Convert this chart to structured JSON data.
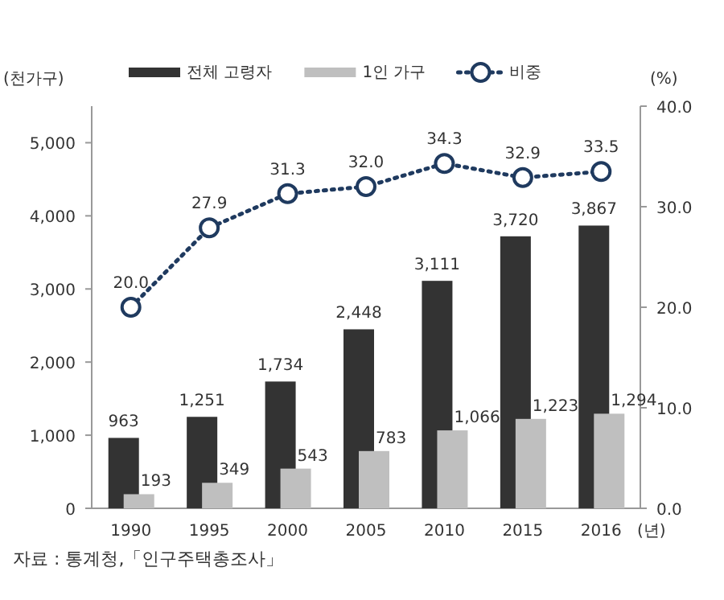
{
  "chart_data": {
    "type": "bar",
    "categories": [
      "1990",
      "1995",
      "2000",
      "2005",
      "2010",
      "2015",
      "2016"
    ],
    "series": [
      {
        "name": "전체 고령자",
        "color": "#333333",
        "values": [
          963,
          1251,
          1734,
          2448,
          3111,
          3720,
          3867
        ],
        "value_labels": [
          "963",
          "1,251",
          "1,734",
          "2,448",
          "3,111",
          "3,720",
          "3,867"
        ]
      },
      {
        "name": "1인 가구",
        "color": "#bfbfbf",
        "values": [
          193,
          349,
          543,
          783,
          1066,
          1223,
          1294
        ],
        "value_labels": [
          "193",
          "349",
          "543",
          "783",
          "1,066",
          "1,223",
          "1,294"
        ]
      },
      {
        "name": "비중",
        "type": "line",
        "axis": "y2",
        "color": "#1f3a5f",
        "marker": "circle",
        "line_style": "dotted",
        "values": [
          20.0,
          27.9,
          31.3,
          32.0,
          34.3,
          32.9,
          33.5
        ],
        "value_labels": [
          "20.0",
          "27.9",
          "31.3",
          "32.0",
          "34.3",
          "32.9",
          "33.5"
        ]
      }
    ],
    "ylabel": "(천가구)",
    "y2label": "(%)",
    "xlabel": "(년)",
    "ylim": [
      0,
      5500
    ],
    "yticks": [
      0,
      {
        "value": 1000,
        "label": "1,000"
      },
      {
        "value": 2000,
        "label": "2,000"
      },
      {
        "value": 3000,
        "label": "3,000"
      },
      {
        "value": 4000,
        "label": "4,000"
      },
      {
        "value": 5000,
        "label": "5,000"
      }
    ],
    "y2lim": [
      0,
      40
    ],
    "y2ticks": [
      {
        "value": 0,
        "label": "0.0"
      },
      {
        "value": 10,
        "label": "10.0"
      },
      {
        "value": 20,
        "label": "20.0"
      },
      {
        "value": 30,
        "label": "30.0"
      },
      {
        "value": 40,
        "label": "40.0"
      }
    ],
    "data_labels": true,
    "grid": false,
    "legend": "top",
    "annotations": [
      "자료 : 통계청,「인구주택총조사」"
    ]
  }
}
